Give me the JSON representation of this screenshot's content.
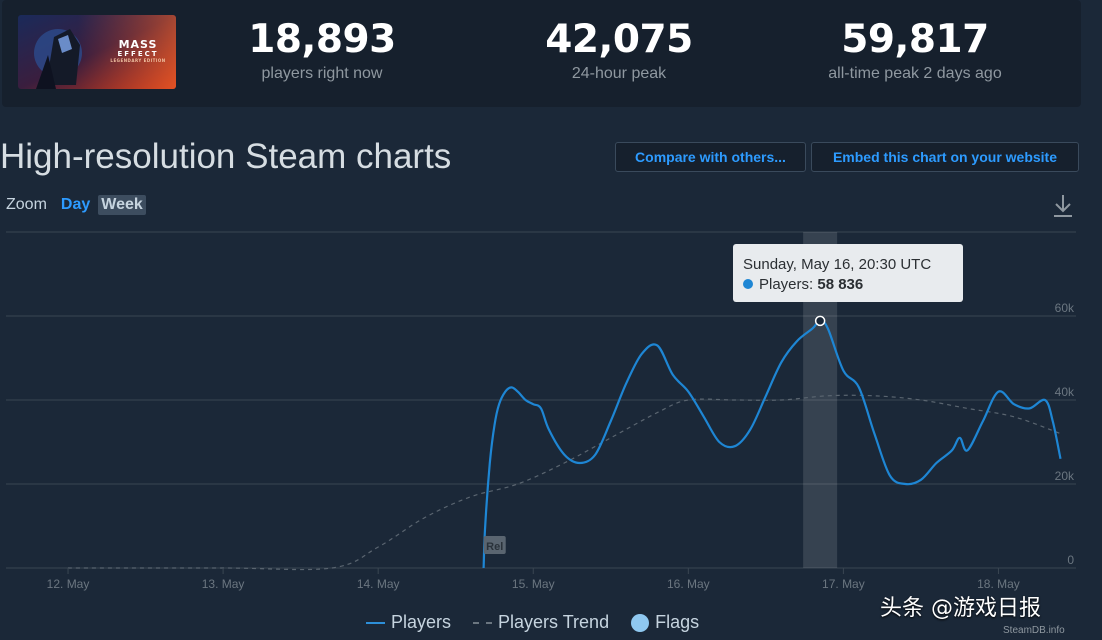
{
  "game": {
    "logo_line1": "MASS",
    "logo_line2": "EFFECT",
    "logo_line3": "LEGENDARY EDITION"
  },
  "stats": [
    {
      "value": "18,893",
      "label": "players right now"
    },
    {
      "value": "42,075",
      "label": "24-hour peak"
    },
    {
      "value": "59,817",
      "label": "all-time peak 2 days ago"
    }
  ],
  "charts": {
    "title": "High-resolution Steam charts",
    "compare_label": "Compare with others...",
    "embed_label": "Embed this chart on your website",
    "zoom_label": "Zoom",
    "zoom_options": [
      "Day",
      "Week"
    ],
    "zoom_active": "Week",
    "download_icon": "download-icon"
  },
  "tooltip": {
    "date": "Sunday, May 16, 20:30 UTC",
    "series_label": "Players:",
    "value": "58 836"
  },
  "legend": {
    "players": "Players",
    "trend": "Players Trend",
    "flags": "Flags"
  },
  "watermark": "头条 @游戏日报",
  "credit": "SteamDB.info",
  "colors": {
    "background": "#1b2838",
    "panel": "#16202d",
    "accent": "#2d9bff",
    "players_line": "#1e86d4",
    "trend_line": "#5a6570",
    "grid": "#3a4652"
  },
  "chart_data": {
    "type": "line",
    "x_ticks": [
      "12. May",
      "13. May",
      "14. May",
      "15. May",
      "16. May",
      "17. May",
      "18. May"
    ],
    "y_ticks": [
      "0",
      "20k",
      "40k",
      "60k"
    ],
    "ylim": [
      0,
      80000
    ],
    "grid": true,
    "legend_position": "bottom",
    "flags": [
      {
        "x": 14.7,
        "label": "Rel"
      }
    ],
    "highlight": {
      "x": 16.85,
      "y": 58836
    },
    "series": [
      {
        "name": "Players",
        "x": [
          14.68,
          14.69,
          14.72,
          14.75,
          14.78,
          14.82,
          14.86,
          14.9,
          14.95,
          15.0,
          15.05,
          15.1,
          15.2,
          15.3,
          15.4,
          15.5,
          15.6,
          15.7,
          15.8,
          15.9,
          16.0,
          16.1,
          16.2,
          16.3,
          16.4,
          16.5,
          16.6,
          16.7,
          16.8,
          16.85,
          16.9,
          17.0,
          17.1,
          17.2,
          17.3,
          17.4,
          17.5,
          17.6,
          17.7,
          17.75,
          17.8,
          17.9,
          18.0,
          18.1,
          18.2,
          18.3,
          18.35,
          18.4
        ],
        "y": [
          0,
          10000,
          25000,
          34000,
          39000,
          42000,
          43000,
          42000,
          40000,
          39000,
          38000,
          33000,
          27000,
          25000,
          27000,
          35000,
          44000,
          51000,
          53000,
          46000,
          42000,
          36000,
          30000,
          29000,
          33000,
          41000,
          49000,
          54000,
          57000,
          58836,
          57000,
          47000,
          43000,
          32000,
          22000,
          20000,
          21000,
          25000,
          28000,
          31000,
          28000,
          35000,
          42000,
          39000,
          38000,
          40000,
          35000,
          26000
        ]
      },
      {
        "name": "Players Trend",
        "x": [
          12.0,
          13.0,
          13.7,
          14.0,
          14.3,
          14.6,
          14.9,
          15.2,
          15.5,
          15.8,
          16.0,
          16.3,
          16.6,
          16.9,
          17.2,
          17.5,
          17.8,
          18.1,
          18.4
        ],
        "y": [
          0,
          0,
          0,
          5000,
          12000,
          17000,
          20000,
          25000,
          31000,
          37000,
          40000,
          40000,
          40000,
          41000,
          41000,
          40000,
          38000,
          36000,
          32000
        ]
      }
    ]
  }
}
